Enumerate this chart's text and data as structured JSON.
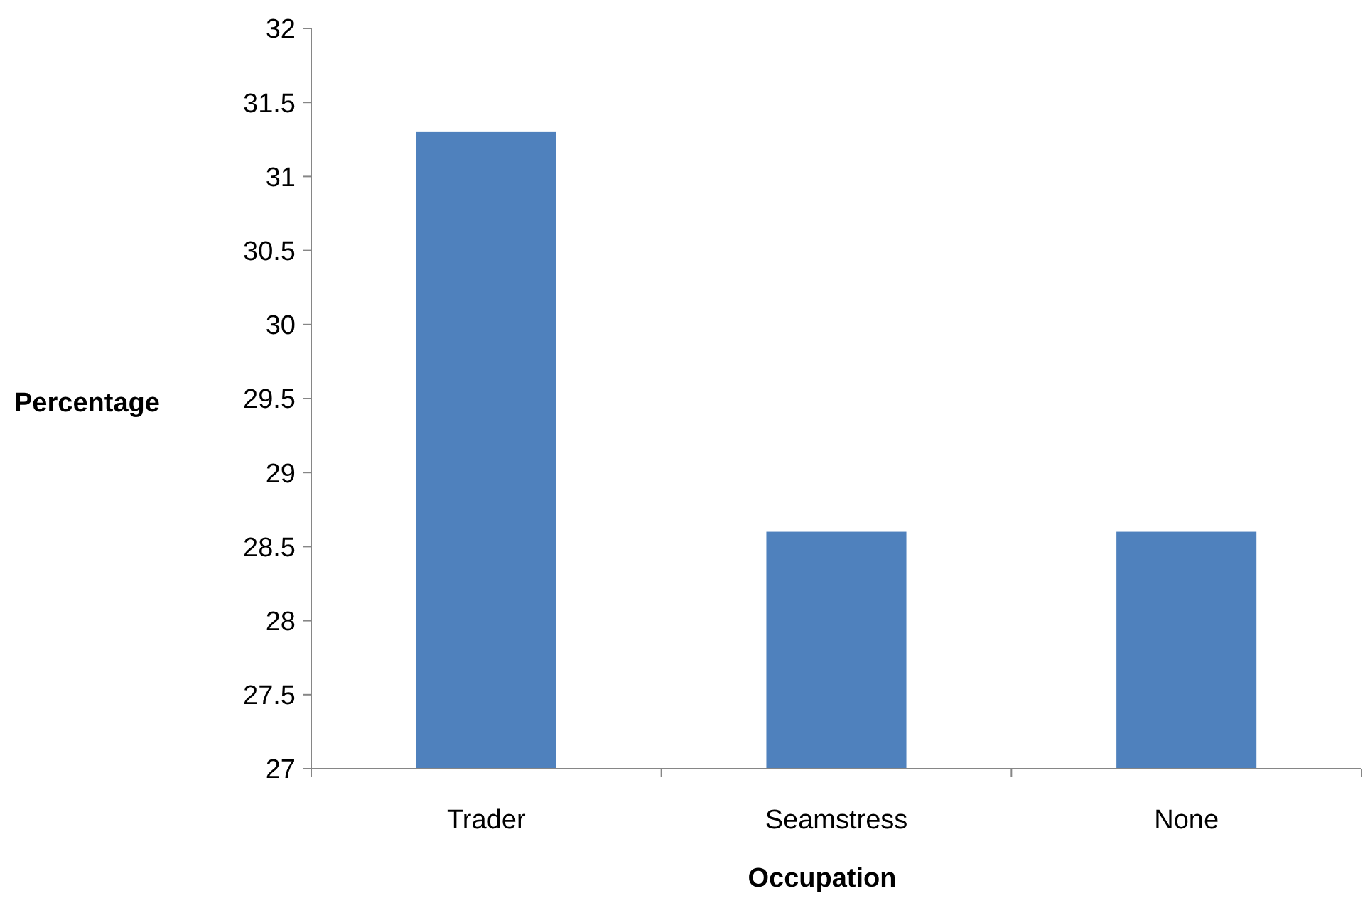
{
  "chart_data": {
    "type": "bar",
    "xlabel": "Occupation",
    "ylabel": "Percentage",
    "categories": [
      "Trader",
      "Seamstress",
      "None"
    ],
    "values": [
      31.3,
      28.6,
      28.6
    ],
    "color": "#4f81bd",
    "ylim": [
      27,
      32
    ],
    "yticks": [
      27,
      27.5,
      28,
      28.5,
      29,
      29.5,
      30,
      30.5,
      31,
      31.5,
      32
    ],
    "grid": false
  }
}
